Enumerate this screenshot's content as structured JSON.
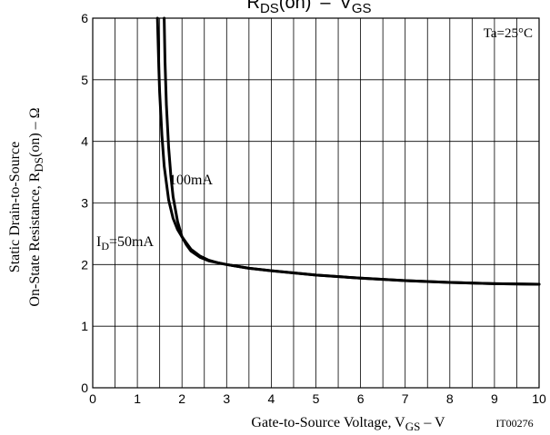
{
  "chart_data": {
    "type": "line",
    "title": "RDS(on) – VGS",
    "xlabel": "Gate-to-Source Voltage, VGS – V",
    "ylabel_line1": "Static Drain-to-Source",
    "ylabel_line2": "On-State Resistance, RDS(on) – Ω",
    "xlim": [
      0,
      10
    ],
    "ylim": [
      0,
      6
    ],
    "x_ticks": [
      0,
      1,
      2,
      3,
      4,
      5,
      6,
      7,
      8,
      9,
      10
    ],
    "y_ticks": [
      0,
      1,
      2,
      3,
      4,
      5,
      6
    ],
    "x_minor_step": 0.5,
    "grid": true,
    "annotation_condition": "Ta=25°C",
    "figure_code": "IT00276",
    "series": [
      {
        "name": "ID=50mA",
        "x": [
          1.6,
          1.62,
          1.65,
          1.7,
          1.75,
          1.8,
          1.9,
          2.0,
          2.1,
          2.2,
          2.4,
          2.6,
          2.8,
          3.0,
          3.5,
          4.0,
          5.0,
          6.0,
          7.0,
          8.0,
          9.0,
          10.0
        ],
        "y": [
          6.0,
          5.3,
          4.6,
          3.9,
          3.45,
          3.1,
          2.7,
          2.45,
          2.32,
          2.22,
          2.12,
          2.06,
          2.03,
          2.0,
          1.94,
          1.9,
          1.83,
          1.78,
          1.74,
          1.71,
          1.69,
          1.68
        ]
      },
      {
        "name": "100mA",
        "x": [
          1.45,
          1.48,
          1.5,
          1.55,
          1.6,
          1.7,
          1.8,
          1.9,
          2.0,
          2.1,
          2.2,
          2.4,
          2.6,
          2.8,
          3.0,
          3.5,
          4.0,
          5.0,
          6.0,
          7.0,
          8.0,
          9.0,
          10.0
        ],
        "y": [
          6.0,
          5.2,
          4.8,
          4.1,
          3.6,
          3.05,
          2.75,
          2.57,
          2.45,
          2.35,
          2.25,
          2.14,
          2.07,
          2.03,
          2.0,
          1.94,
          1.9,
          1.83,
          1.78,
          1.74,
          1.71,
          1.69,
          1.68
        ]
      }
    ],
    "curve_labels": {
      "id50": {
        "prefix": "I",
        "sub": "D",
        "suffix": "=50mA"
      },
      "id100": "100mA"
    },
    "title_parts": {
      "r": "R",
      "r_sub": "DS",
      "r_rest": "(on)",
      "dash": "–",
      "v": "V",
      "v_sub": "GS"
    },
    "xlabel_parts": {
      "pre": "Gate-to-Source Voltage, V",
      "sub": "GS",
      "post": " – V"
    },
    "ylabel2_parts": {
      "pre": "On-State Resistance, R",
      "sub": "DS",
      "post": "(on) – Ω"
    }
  }
}
